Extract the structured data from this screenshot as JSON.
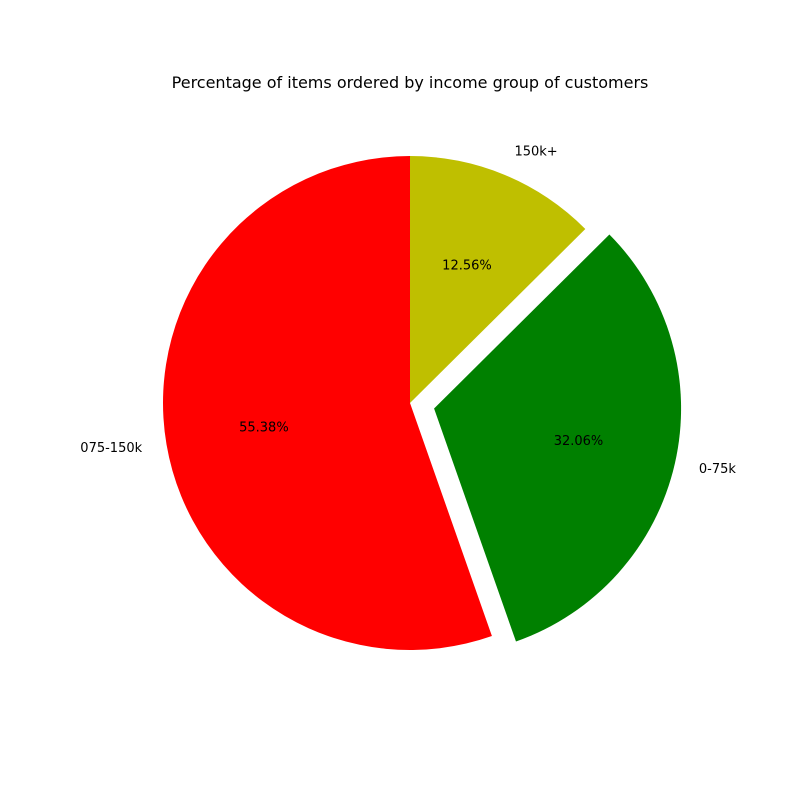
{
  "chart_data": {
    "type": "pie",
    "title": "Percentage of items ordered by income group of customers",
    "slices": [
      {
        "label": "150k+",
        "value": 12.56,
        "pct_label": "12.56%",
        "color": "#bfbf00",
        "exploded": false
      },
      {
        "label": "0-75k",
        "value": 32.06,
        "pct_label": "32.06%",
        "color": "#008000",
        "exploded": true
      },
      {
        "label": "075-150k",
        "value": 55.38,
        "pct_label": "55.38%",
        "color": "#ff0000",
        "exploded": false
      }
    ],
    "start_angle_deg": 90,
    "direction": "clockwise",
    "legend": "none"
  }
}
